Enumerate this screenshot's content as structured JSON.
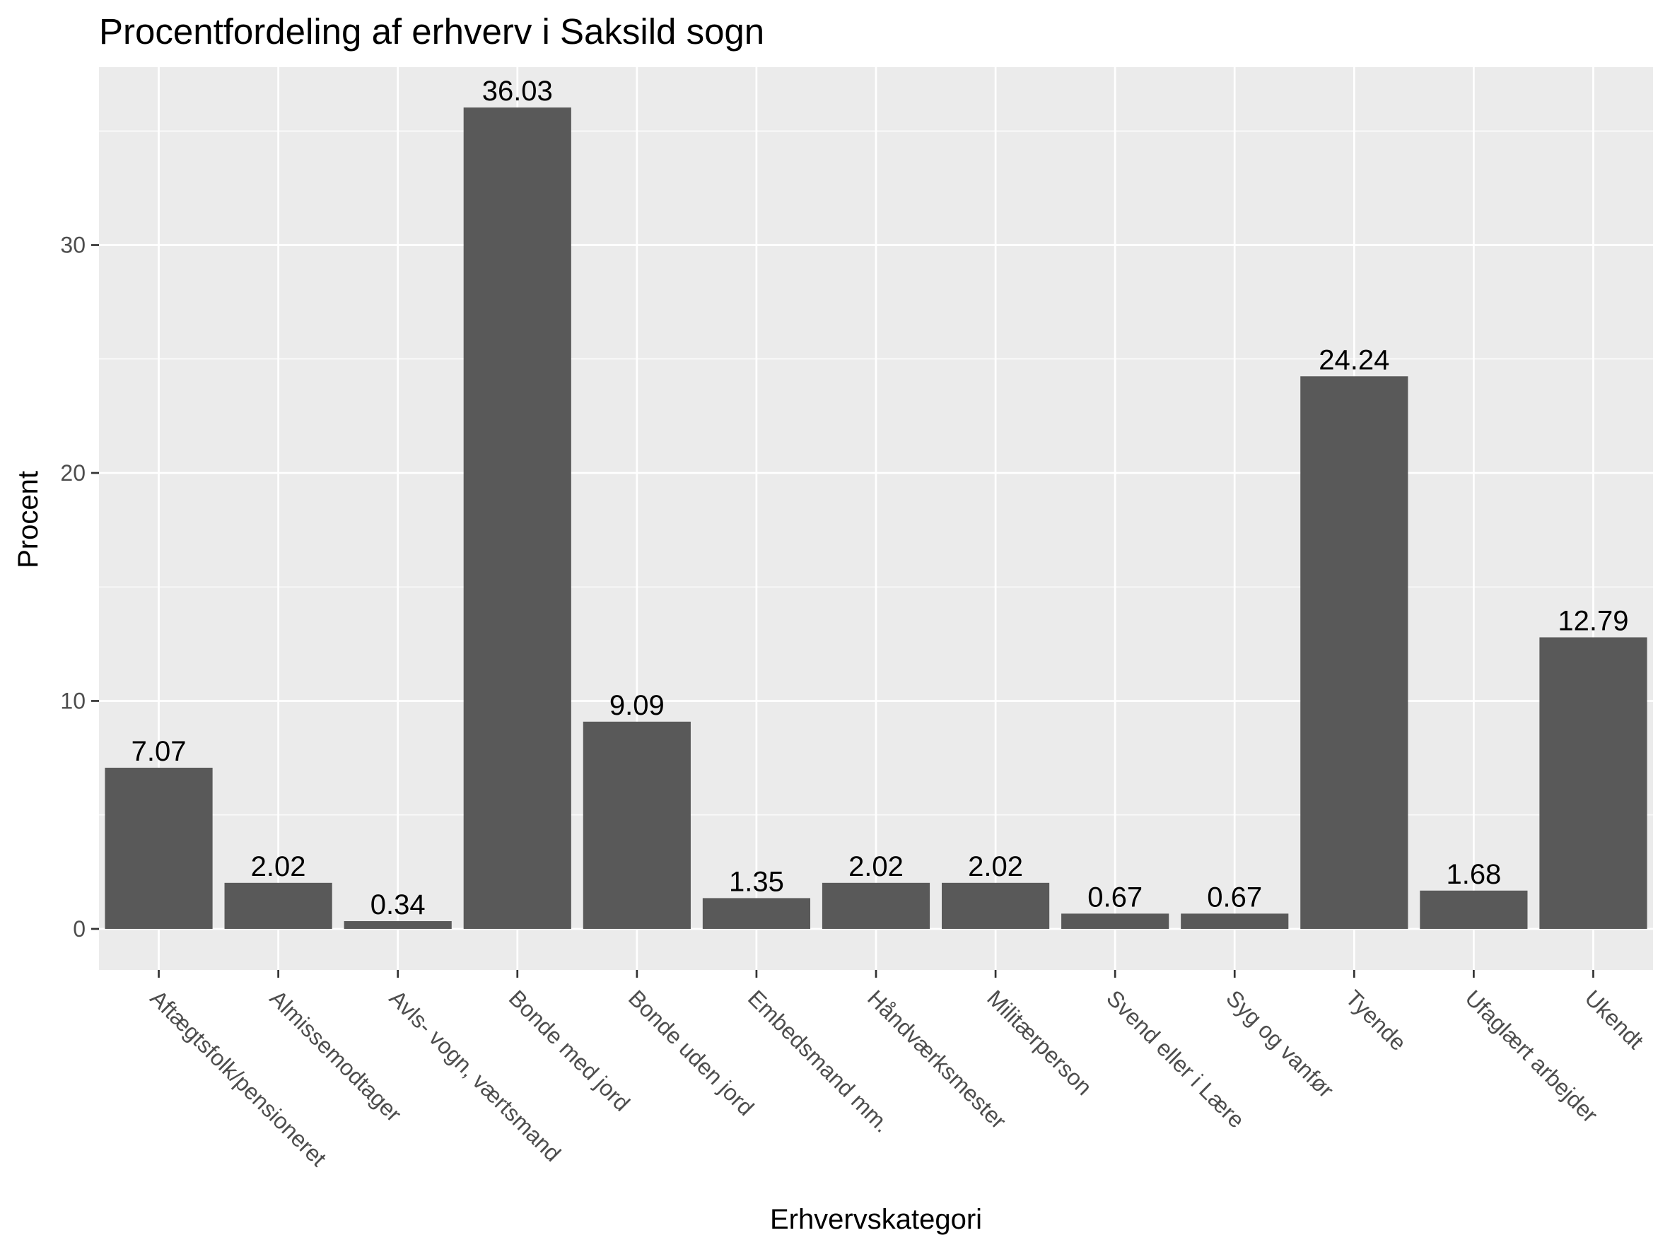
{
  "chart_data": {
    "type": "bar",
    "title": "Procentfordeling af erhverv i Saksild sogn",
    "xlabel": "Erhvervskategori",
    "ylabel": "Procent",
    "categories": [
      "Aftægtsfolk/pensioneret",
      "Almissemodtager",
      "Avls- vogn, værtsmand",
      "Bonde med jord",
      "Bonde uden jord",
      "Embedsmand mm.",
      "Håndværksmester",
      "Militærperson",
      "Svend eller i Lære",
      "Syg og vanfør",
      "Tyende",
      "Ufaglært arbejder",
      "Ukendt"
    ],
    "values": [
      7.07,
      2.02,
      0.34,
      36.03,
      9.09,
      1.35,
      2.02,
      2.02,
      0.67,
      0.67,
      24.24,
      1.68,
      12.79
    ],
    "value_labels": [
      "7.07",
      "2.02",
      "0.34",
      "36.03",
      "9.09",
      "1.35",
      "2.02",
      "2.02",
      "0.67",
      "0.67",
      "24.24",
      "1.68",
      "12.79"
    ],
    "yticks": [
      0,
      10,
      20,
      30
    ],
    "ytick_labels": [
      "0",
      "10",
      "20",
      "30"
    ],
    "ylim": [
      -1.8,
      37.8
    ],
    "grid": true,
    "colors": {
      "bar": "#595959",
      "panel": "#ebebeb",
      "grid": "#ffffff",
      "tick_text": "#4d4d4d",
      "tick_mark": "#333333"
    }
  }
}
